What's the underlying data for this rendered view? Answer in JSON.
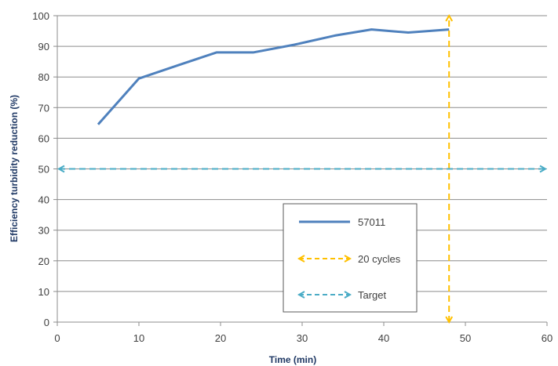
{
  "chart_data": {
    "type": "line",
    "xlabel": "Time (min)",
    "ylabel": "Efficiency turbidity reduction (%)",
    "xlim": [
      0,
      60
    ],
    "ylim": [
      0,
      100
    ],
    "x_ticks": [
      "0",
      "10",
      "20",
      "30",
      "40",
      "50",
      "60"
    ],
    "y_ticks": [
      "0",
      "10",
      "20",
      "30",
      "40",
      "50",
      "60",
      "70",
      "80",
      "90",
      "100"
    ],
    "grid": "horizontal",
    "legend_placement": "center-bottom",
    "series": [
      {
        "name": "57011",
        "style": "solid",
        "color": "#4f81bd",
        "x": [
          5,
          10,
          15,
          19.5,
          24,
          29,
          34,
          38.5,
          43,
          48
        ],
        "y": [
          64.5,
          79.5,
          84,
          88,
          88,
          90.5,
          93.5,
          95.5,
          94.5,
          95.5
        ]
      },
      {
        "name": "20 cycles",
        "style": "dashed-double-arrow-vertical",
        "color": "#ffc000",
        "x": [
          48,
          48
        ],
        "y": [
          0,
          100
        ]
      },
      {
        "name": "Target",
        "style": "dashed-double-arrow-horizontal",
        "color": "#4bacc6",
        "x": [
          0,
          60
        ],
        "y": [
          50,
          50
        ]
      }
    ]
  }
}
